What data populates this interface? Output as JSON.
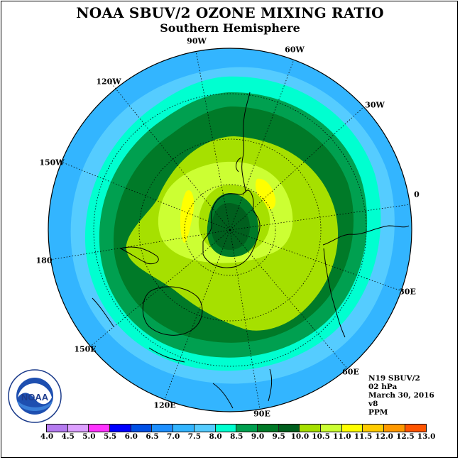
{
  "title": "NOAA SBUV/2 OZONE MIXING RATIO",
  "subtitle": "Southern Hemisphere",
  "map_meta": {
    "instrument": "N19 SBUV/2",
    "level": "02 hPa",
    "date": "March 30, 2016",
    "version": "v8",
    "units": "PPM"
  },
  "lon_labels": [
    "90W",
    "60W",
    "30W",
    "0",
    "30E",
    "60E",
    "90E",
    "120E",
    "150E",
    "180",
    "150W",
    "120W"
  ],
  "logo_text": "NOAA",
  "colorbar": {
    "ticks": [
      "4.0",
      "4.5",
      "5.0",
      "5.5",
      "6.0",
      "6.5",
      "7.0",
      "7.5",
      "8.0",
      "8.5",
      "9.0",
      "9.5",
      "10.0",
      "10.5",
      "11.0",
      "11.5",
      "12.0",
      "12.5",
      "13.0"
    ],
    "colors": [
      "#b57bf0",
      "#dda0ff",
      "#ff33ff",
      "#0000ff",
      "#0050e6",
      "#1e90ff",
      "#33b5ff",
      "#55ccff",
      "#00ffd0",
      "#00a050",
      "#007a28",
      "#005f1e",
      "#a6e000",
      "#ccff33",
      "#ffff00",
      "#ffcc00",
      "#ff9900",
      "#ff5500",
      "#ff0000",
      "#8b5a2b"
    ]
  },
  "map_colors": {
    "cyan_light": "#33b5ff",
    "cyan": "#55ccff",
    "teal": "#00ffd0",
    "green": "#00a050",
    "dark_green": "#007a28",
    "darkest_green": "#005f1e",
    "yellow_green": "#a6e000",
    "light_yellow_green": "#ccff33",
    "yellow": "#ffff00"
  }
}
